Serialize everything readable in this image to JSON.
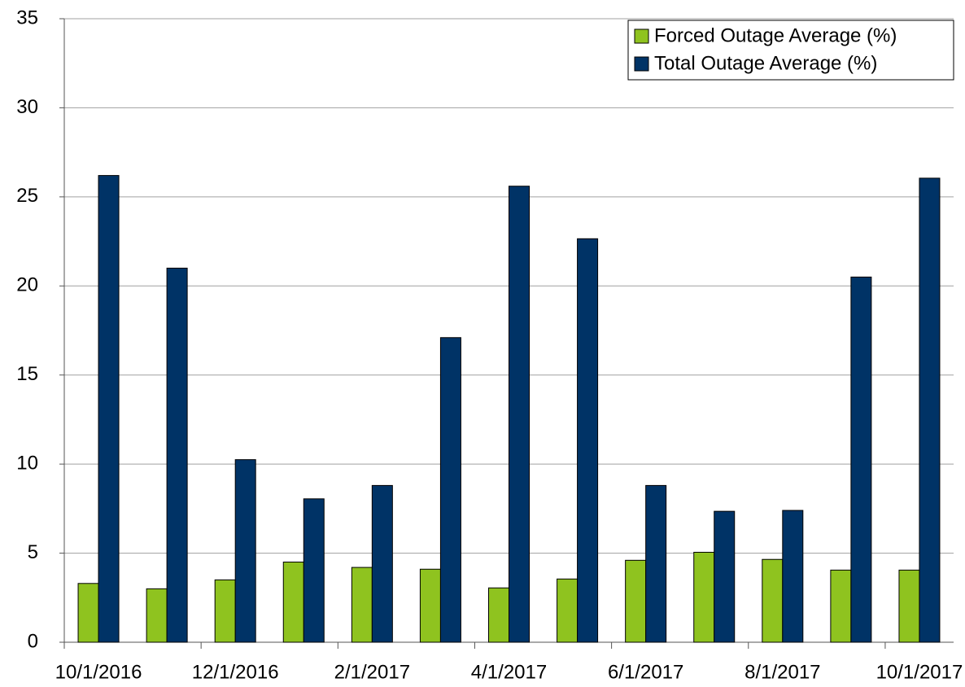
{
  "chart_data": {
    "type": "bar",
    "categories": [
      "10/1/2016",
      null,
      "12/1/2016",
      null,
      "2/1/2017",
      null,
      "4/1/2017",
      null,
      "6/1/2017",
      null,
      "8/1/2017",
      null,
      "10/1/2017"
    ],
    "series": [
      {
        "name": "Forced Outage Average (%)",
        "color": "#8fc31f",
        "values": [
          3.3,
          3.0,
          3.5,
          4.5,
          4.2,
          4.1,
          3.05,
          3.55,
          4.6,
          5.05,
          4.65,
          4.05,
          4.05
        ]
      },
      {
        "name": "Total Outage Average (%)",
        "color": "#003366",
        "values": [
          26.2,
          21.0,
          10.25,
          8.05,
          8.8,
          17.1,
          25.6,
          22.65,
          8.8,
          7.35,
          7.4,
          20.5,
          26.05
        ]
      }
    ],
    "ylim": [
      0,
      35
    ],
    "yticks": [
      0,
      5,
      10,
      15,
      20,
      25,
      30,
      35
    ],
    "grid": true,
    "legend": "top-right"
  }
}
